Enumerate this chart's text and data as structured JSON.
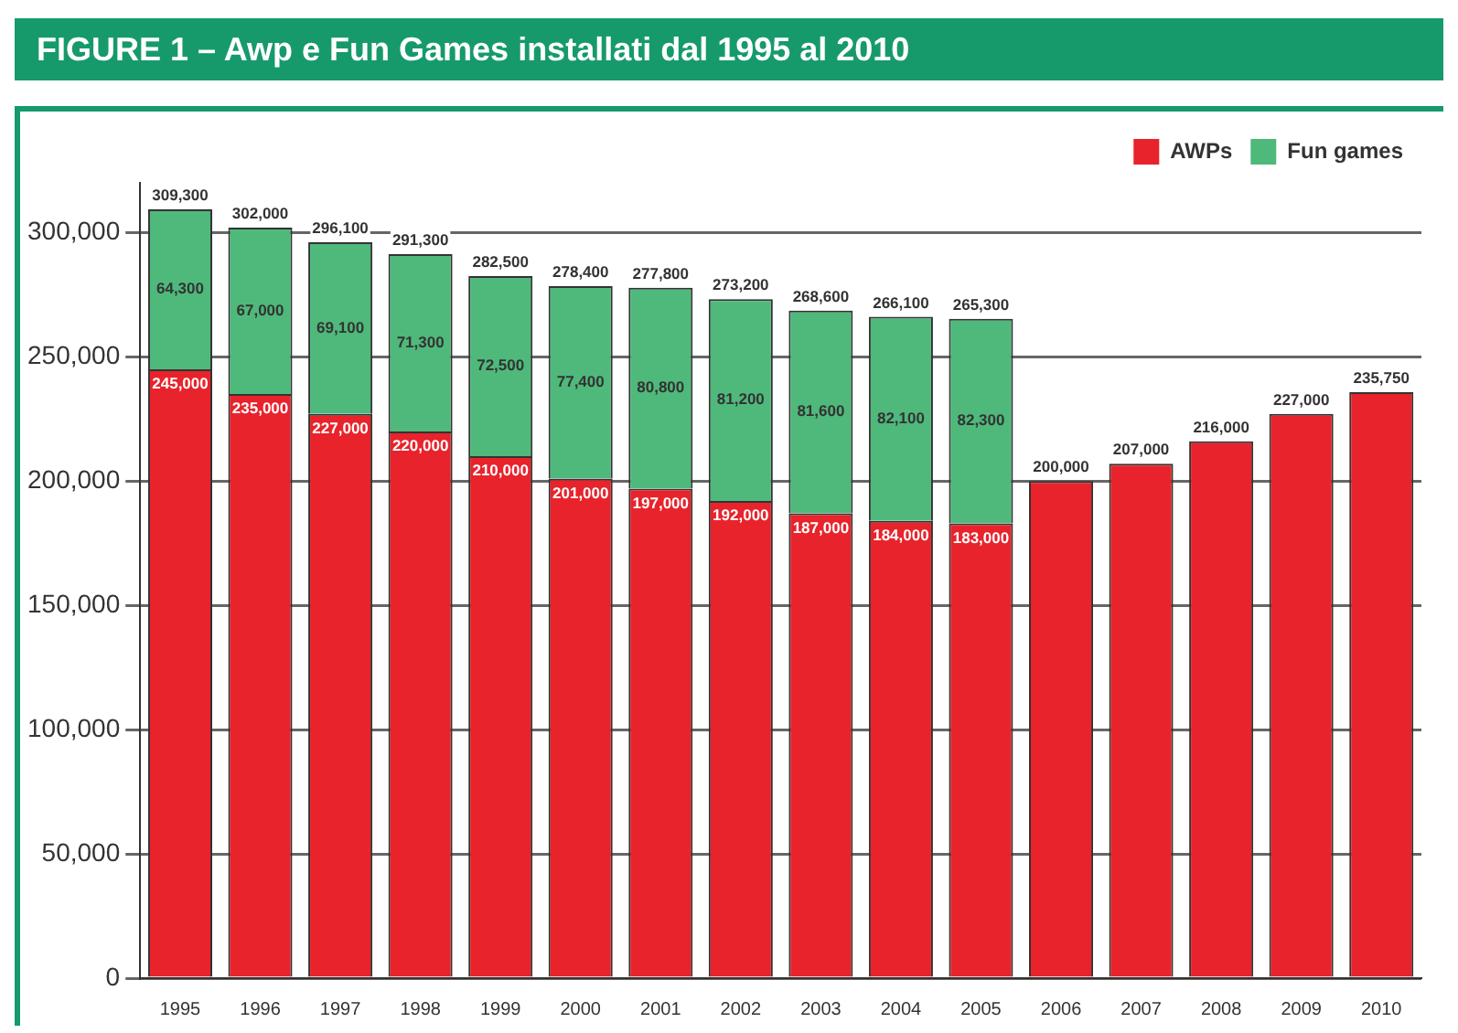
{
  "chart_data": {
    "type": "bar",
    "title": "FIGURE 1 – Awp e Fun Games installati dal 1995 al 2010",
    "categories": [
      "1995",
      "1996",
      "1997",
      "1998",
      "1999",
      "2000",
      "2001",
      "2002",
      "2003",
      "2004",
      "2005",
      "2006",
      "2007",
      "2008",
      "2009",
      "2010"
    ],
    "series": [
      {
        "name": "AWPs",
        "color": "#e8232b",
        "values": [
          245000,
          235000,
          227000,
          220000,
          210000,
          201000,
          197000,
          192000,
          187000,
          184000,
          183000,
          200000,
          207000,
          216000,
          227000,
          235750
        ],
        "value_labels": [
          "245,000",
          "235,000",
          "227,000",
          "220,000",
          "210,000",
          "201,000",
          "197,000",
          "192,000",
          "187,000",
          "184,000",
          "183,000",
          "200,000",
          "207,000",
          "216,000",
          "227,000",
          "235,750"
        ]
      },
      {
        "name": "Fun games",
        "color": "#4fb97b",
        "values": [
          64300,
          67000,
          69100,
          71300,
          72500,
          77400,
          80800,
          81200,
          81600,
          82100,
          82300,
          null,
          null,
          null,
          null,
          null
        ],
        "value_labels": [
          "64,300",
          "67,000",
          "69,100",
          "71,300",
          "72,500",
          "77,400",
          "80,800",
          "81,200",
          "81,600",
          "82,100",
          "82,300",
          null,
          null,
          null,
          null,
          null
        ]
      }
    ],
    "stacked": true,
    "totals": [
      "309,300",
      "302,000",
      "296,100",
      "291,300",
      "282,500",
      "278,400",
      "277,800",
      "273,200",
      "268,600",
      "266,100",
      "265,300",
      null,
      null,
      null,
      null,
      null
    ],
    "ylim": [
      0,
      320000
    ],
    "yticks": [
      0,
      {
        "value": 50000,
        "label": "50,000"
      },
      {
        "value": 100000,
        "label": "100,000"
      },
      {
        "value": 150000,
        "label": "150,000"
      },
      {
        "value": 200000,
        "label": "200,000"
      },
      {
        "value": 250000,
        "label": "250,000"
      },
      {
        "value": 300000,
        "label": "300,000"
      }
    ],
    "grid": "y",
    "legend": "top right"
  }
}
